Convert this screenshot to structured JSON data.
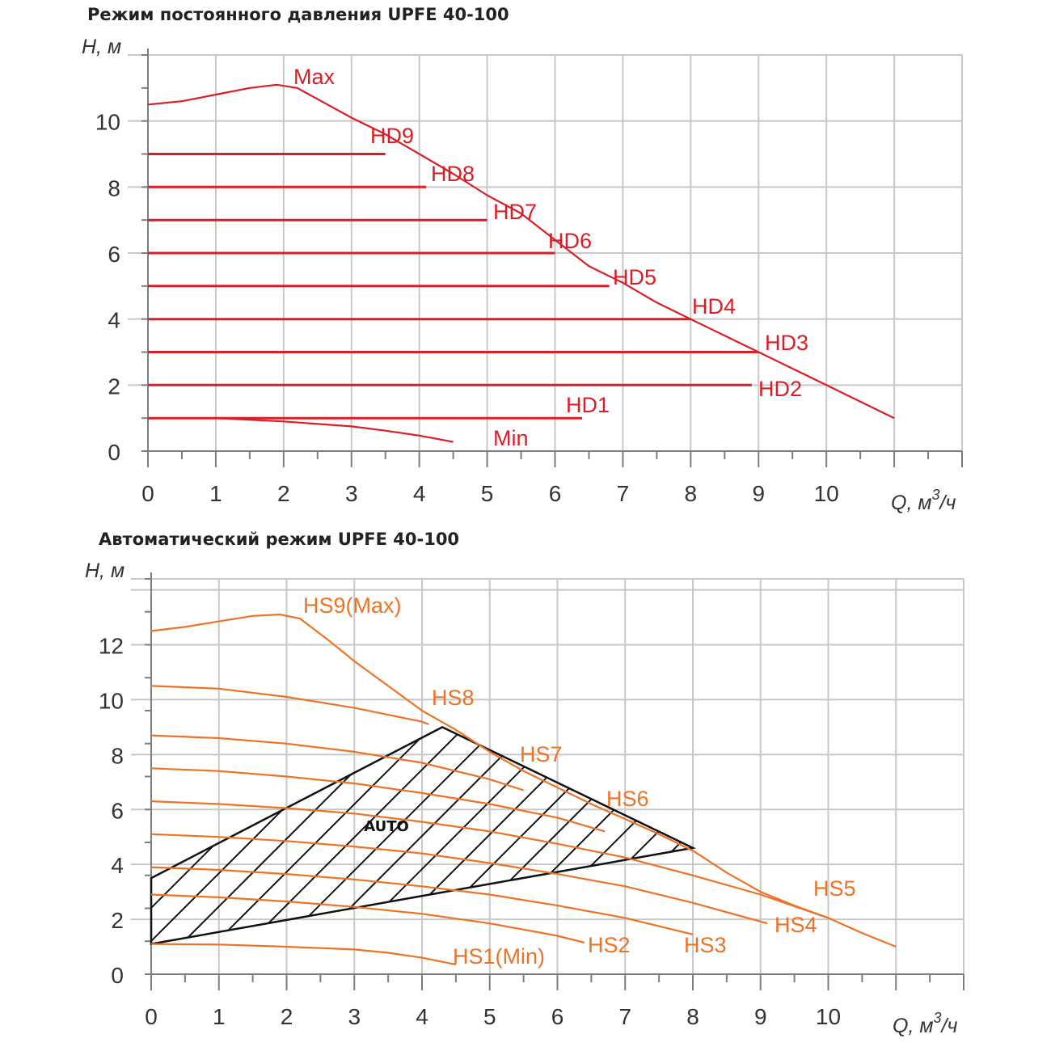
{
  "colors": {
    "chart1": "#d81e26",
    "chart2": "#ec7325",
    "grid": "#c8c8c8",
    "axis": "#7d7d7d",
    "hatch": "#111111"
  },
  "chart_data": [
    {
      "type": "line",
      "title": "Режим постоянного давления UPFE 40-100",
      "ylabel": "H, м",
      "xlabel_prefix": "Q, м",
      "xlabel_sup": "3",
      "xlabel_suffix": "/ч",
      "xlim": [
        0,
        12
      ],
      "ylim": [
        0,
        12
      ],
      "xticks": [
        "0",
        "1",
        "2",
        "3",
        "4",
        "5",
        "6",
        "7",
        "8",
        "9",
        "10"
      ],
      "yticks": [
        "0",
        "2",
        "4",
        "6",
        "8",
        "10"
      ],
      "series": [
        {
          "name": "Max",
          "label": "Max",
          "x": [
            0,
            0.5,
            1,
            1.5,
            1.9,
            2.2,
            2.6,
            3,
            3.5,
            4,
            4.5,
            5,
            5.5,
            6,
            6.5,
            7,
            7.5,
            8,
            8.5,
            9,
            9.5,
            10,
            10.5,
            11
          ],
          "y": [
            10.5,
            10.6,
            10.8,
            11,
            11.1,
            11,
            10.55,
            10.1,
            9.6,
            9.0,
            8.4,
            7.75,
            7.2,
            6.4,
            5.6,
            5.1,
            4.5,
            4.0,
            3.5,
            3.0,
            2.5,
            2.0,
            1.5,
            1.0
          ]
        },
        {
          "name": "HD9",
          "label": "HD9",
          "x": [
            0,
            3.5
          ],
          "y": [
            9,
            9
          ]
        },
        {
          "name": "HD8",
          "label": "HD8",
          "x": [
            0,
            4.1
          ],
          "y": [
            8,
            8
          ]
        },
        {
          "name": "HD7",
          "label": "HD7",
          "x": [
            0,
            5.0
          ],
          "y": [
            7,
            7
          ]
        },
        {
          "name": "HD6",
          "label": "HD6",
          "x": [
            0,
            6.0
          ],
          "y": [
            6,
            6
          ]
        },
        {
          "name": "HD5",
          "label": "HD5",
          "x": [
            0,
            6.8
          ],
          "y": [
            5,
            5
          ]
        },
        {
          "name": "HD4",
          "label": "HD4",
          "x": [
            0,
            8.0
          ],
          "y": [
            4,
            4
          ]
        },
        {
          "name": "HD3",
          "label": "HD3",
          "x": [
            0,
            9.0
          ],
          "y": [
            3,
            3
          ]
        },
        {
          "name": "HD2",
          "label": "HD2",
          "x": [
            0,
            8.9
          ],
          "y": [
            2,
            2
          ]
        },
        {
          "name": "HD1",
          "label": "HD1",
          "x": [
            0,
            6.4
          ],
          "y": [
            1,
            1
          ]
        },
        {
          "name": "Min",
          "label": "Min",
          "x": [
            0,
            1,
            2,
            3,
            3.5,
            4,
            4.5
          ],
          "y": [
            1.0,
            1.0,
            0.9,
            0.75,
            0.62,
            0.47,
            0.28
          ]
        }
      ]
    },
    {
      "type": "line",
      "title": "Автоматический режим UPFE 40-100",
      "ylabel": "H, м",
      "xlabel_prefix": "Q, м",
      "xlabel_sup": "3",
      "xlabel_suffix": "/ч",
      "xlim": [
        0,
        12
      ],
      "ylim": [
        0,
        14.4
      ],
      "xticks": [
        "0",
        "1",
        "2",
        "3",
        "4",
        "5",
        "6",
        "7",
        "8",
        "9",
        "10"
      ],
      "yticks": [
        "0",
        "2",
        "4",
        "6",
        "8",
        "10",
        "12"
      ],
      "series": [
        {
          "name": "HS9(Max)",
          "label": "HS9(Max)",
          "x": [
            0,
            0.5,
            1,
            1.5,
            1.9,
            2.2,
            2.6,
            3,
            3.5,
            4,
            4.5,
            5,
            5.5,
            6,
            6.5,
            7,
            7.5,
            8,
            8.5,
            9,
            9.5,
            10,
            10.5,
            11
          ],
          "y": [
            12.5,
            12.65,
            12.85,
            13.05,
            13.1,
            12.95,
            12.2,
            11.4,
            10.5,
            9.6,
            8.9,
            8.1,
            7.4,
            6.8,
            6.2,
            5.65,
            5.1,
            4.5,
            3.7,
            3.0,
            2.5,
            2.05,
            1.5,
            1.0
          ]
        },
        {
          "name": "HS8",
          "label": "HS8",
          "x": [
            0,
            1,
            2,
            3,
            4,
            4.1
          ],
          "y": [
            10.5,
            10.4,
            10.1,
            9.7,
            9.2,
            9.1
          ]
        },
        {
          "name": "HS7",
          "label": "HS7",
          "x": [
            0,
            1,
            2,
            3,
            4,
            5,
            5.5
          ],
          "y": [
            8.7,
            8.6,
            8.4,
            8.1,
            7.7,
            7.1,
            6.7
          ]
        },
        {
          "name": "HS6",
          "label": "HS6",
          "x": [
            0,
            1,
            2,
            3,
            4,
            5,
            6,
            6.7
          ],
          "y": [
            7.5,
            7.4,
            7.2,
            6.95,
            6.6,
            6.2,
            5.7,
            5.2
          ]
        },
        {
          "name": "HS5",
          "label": "HS5",
          "x": [
            0,
            1,
            2,
            3,
            4,
            5,
            6,
            7,
            8,
            9,
            10
          ],
          "y": [
            6.3,
            6.2,
            6.05,
            5.85,
            5.55,
            5.2,
            4.75,
            4.25,
            3.6,
            2.9,
            2.05
          ]
        },
        {
          "name": "HS4",
          "label": "HS4",
          "x": [
            0,
            1,
            2,
            3,
            4,
            5,
            6,
            7,
            8,
            9.1
          ],
          "y": [
            5.1,
            5.0,
            4.85,
            4.65,
            4.4,
            4.05,
            3.65,
            3.2,
            2.6,
            1.85
          ]
        },
        {
          "name": "HS3",
          "label": "HS3",
          "x": [
            0,
            1,
            2,
            3,
            4,
            5,
            6,
            7,
            8
          ],
          "y": [
            3.9,
            3.8,
            3.65,
            3.45,
            3.2,
            2.9,
            2.5,
            2.05,
            1.45
          ]
        },
        {
          "name": "HS2",
          "label": "HS2",
          "x": [
            0,
            1,
            2,
            3,
            4,
            5,
            6,
            6.4
          ],
          "y": [
            2.9,
            2.8,
            2.65,
            2.45,
            2.2,
            1.85,
            1.4,
            1.15
          ]
        },
        {
          "name": "HS1(Min)",
          "label": "HS1(Min)",
          "x": [
            0,
            1,
            2,
            3,
            3.5,
            4,
            4.5
          ],
          "y": [
            1.1,
            1.08,
            1.0,
            0.9,
            0.78,
            0.6,
            0.35
          ]
        }
      ],
      "auto_zone": {
        "label": "AUTO",
        "polygon": [
          [
            0,
            1.1
          ],
          [
            8,
            4.6
          ],
          [
            4.3,
            9.0
          ],
          [
            0,
            3.5
          ]
        ]
      }
    }
  ]
}
